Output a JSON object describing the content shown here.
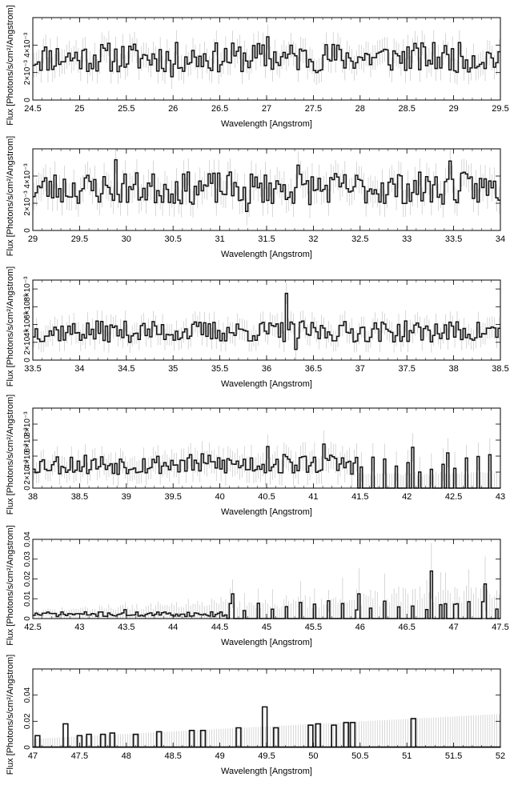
{
  "chart_data": [
    {
      "type": "line",
      "xlabel": "Wavelength [Angstrom]",
      "ylabel": "Flux [Photons/s/cm²/Angstrom]",
      "xlim": [
        24.5,
        29.5
      ],
      "ylim": [
        0,
        0.006
      ],
      "xticks": [
        {
          "v": 24.5,
          "label": "24.5"
        },
        {
          "v": 25,
          "label": "25"
        },
        {
          "v": 25.5,
          "label": "25.5"
        },
        {
          "v": 26,
          "label": "26"
        },
        {
          "v": 26.5,
          "label": "26.5"
        },
        {
          "v": 27,
          "label": "27"
        },
        {
          "v": 27.5,
          "label": "27.5"
        },
        {
          "v": 28,
          "label": "28"
        },
        {
          "v": 28.5,
          "label": "28.5"
        },
        {
          "v": 29,
          "label": "29"
        },
        {
          "v": 29.5,
          "label": "29.5"
        }
      ],
      "yticks": [
        {
          "v": 0,
          "label": "0"
        },
        {
          "v": 0.002,
          "label": "2×10⁻³"
        },
        {
          "v": 0.004,
          "label": "4×10⁻³"
        }
      ],
      "series": [
        {
          "x_start": 24.5,
          "x_step": 0.025,
          "level": 0.0031,
          "noise": 0.0011,
          "err": 0.0009,
          "err_growth": 0,
          "seed": 11,
          "spikes": [
            {
              "x": 27.0,
              "y": 0.0046
            },
            {
              "x": 25.98,
              "y": 0.0017
            }
          ]
        }
      ]
    },
    {
      "type": "line",
      "xlabel": "Wavelength [Angstrom]",
      "ylabel": "Flux [Photons/s/cm²/Angstrom]",
      "xlim": [
        29,
        34
      ],
      "ylim": [
        0,
        0.006
      ],
      "xticks": [
        {
          "v": 29,
          "label": "29"
        },
        {
          "v": 29.5,
          "label": "29.5"
        },
        {
          "v": 30,
          "label": "30"
        },
        {
          "v": 30.5,
          "label": "30.5"
        },
        {
          "v": 31,
          "label": "31"
        },
        {
          "v": 31.5,
          "label": "31.5"
        },
        {
          "v": 32,
          "label": "32"
        },
        {
          "v": 32.5,
          "label": "32.5"
        },
        {
          "v": 33,
          "label": "33"
        },
        {
          "v": 33.5,
          "label": "33.5"
        },
        {
          "v": 34,
          "label": "34"
        }
      ],
      "yticks": [
        {
          "v": 0,
          "label": "0"
        },
        {
          "v": 0.002,
          "label": "2×10⁻³"
        },
        {
          "v": 0.004,
          "label": "4×10⁻³"
        }
      ],
      "series": [
        {
          "x_start": 29.0,
          "x_step": 0.025,
          "level": 0.0031,
          "noise": 0.0012,
          "err": 0.001,
          "err_growth": 0,
          "seed": 23,
          "spikes": [
            {
              "x": 29.88,
              "y": 0.0052
            },
            {
              "x": 31.82,
              "y": 0.0048
            },
            {
              "x": 33.45,
              "y": 0.0051
            },
            {
              "x": 31.28,
              "y": 0.0014
            }
          ]
        }
      ]
    },
    {
      "type": "line",
      "xlabel": "Wavelength [Angstrom]",
      "ylabel": "Flux [Photons/s/cm²/Angstrom]",
      "xlim": [
        33.5,
        38.5
      ],
      "ylim": [
        0,
        0.009
      ],
      "xticks": [
        {
          "v": 33.5,
          "label": "33.5"
        },
        {
          "v": 34,
          "label": "34"
        },
        {
          "v": 34.5,
          "label": "34.5"
        },
        {
          "v": 35,
          "label": "35"
        },
        {
          "v": 35.5,
          "label": "35.5"
        },
        {
          "v": 36,
          "label": "36"
        },
        {
          "v": 36.5,
          "label": "36.5"
        },
        {
          "v": 37,
          "label": "37"
        },
        {
          "v": 37.5,
          "label": "37.5"
        },
        {
          "v": 38,
          "label": "38"
        },
        {
          "v": 38.5,
          "label": "38.5"
        }
      ],
      "yticks": [
        {
          "v": 0,
          "label": "0"
        },
        {
          "v": 0.002,
          "label": "2×10⁻³"
        },
        {
          "v": 0.004,
          "label": "4×10⁻³"
        },
        {
          "v": 0.006,
          "label": "6×10⁻³"
        },
        {
          "v": 0.008,
          "label": "8×10⁻³"
        }
      ],
      "series": [
        {
          "x_start": 33.5,
          "x_step": 0.025,
          "level": 0.0032,
          "noise": 0.0012,
          "err": 0.0012,
          "err_growth": 0,
          "seed": 37,
          "spikes": [
            {
              "x": 36.2,
              "y": 0.0075
            },
            {
              "x": 36.3,
              "y": 0.0012
            }
          ]
        }
      ]
    },
    {
      "type": "line",
      "xlabel": "Wavelength [Angstrom]",
      "ylabel": "Flux [Photons/s/cm²/Angstrom]",
      "xlim": [
        38,
        43
      ],
      "ylim": [
        0,
        0.01
      ],
      "xticks": [
        {
          "v": 38,
          "label": "38"
        },
        {
          "v": 38.5,
          "label": "38.5"
        },
        {
          "v": 39,
          "label": "39"
        },
        {
          "v": 39.5,
          "label": "39.5"
        },
        {
          "v": 40,
          "label": "40"
        },
        {
          "v": 40.5,
          "label": "40.5"
        },
        {
          "v": 41,
          "label": "41"
        },
        {
          "v": 41.5,
          "label": "41.5"
        },
        {
          "v": 42,
          "label": "42"
        },
        {
          "v": 42.5,
          "label": "42.5"
        },
        {
          "v": 43,
          "label": "43"
        }
      ],
      "yticks": [
        {
          "v": 0,
          "label": "0"
        },
        {
          "v": 0.002,
          "label": "2×10⁻³"
        },
        {
          "v": 0.004,
          "label": "4×10⁻³"
        },
        {
          "v": 0.006,
          "label": "6×10⁻³"
        },
        {
          "v": 0.008,
          "label": "8×10⁻³"
        }
      ],
      "series": [
        {
          "x_start": 38.0,
          "x_step": 0.025,
          "level": 0.003,
          "noise": 0.0013,
          "err": 0.0013,
          "err_growth": 0.0006,
          "seed": 53,
          "gap_from": 41.45,
          "gap_every": 5,
          "spikes": [
            {
              "x": 40.5,
              "y": 0.0052
            },
            {
              "x": 41.1,
              "y": 0.0055
            },
            {
              "x": 42.05,
              "y": 0.0051
            },
            {
              "x": 42.42,
              "y": 0.0044
            }
          ]
        }
      ]
    },
    {
      "type": "line",
      "xlabel": "Wavelength [Angstrom]",
      "ylabel": "Flux [Photons/s/cm²/Angstrom]",
      "xlim": [
        42.5,
        47.5
      ],
      "ylim": [
        0,
        0.04
      ],
      "xticks": [
        {
          "v": 42.5,
          "label": "42.5"
        },
        {
          "v": 43,
          "label": "43"
        },
        {
          "v": 43.5,
          "label": "43.5"
        },
        {
          "v": 44,
          "label": "44"
        },
        {
          "v": 44.5,
          "label": "44.5"
        },
        {
          "v": 45,
          "label": "45"
        },
        {
          "v": 45.5,
          "label": "45.5"
        },
        {
          "v": 46,
          "label": "46"
        },
        {
          "v": 46.5,
          "label": "46.5"
        },
        {
          "v": 47,
          "label": "47"
        },
        {
          "v": 47.5,
          "label": "47.5"
        }
      ],
      "yticks": [
        {
          "v": 0,
          "label": "0"
        },
        {
          "v": 0.01,
          "label": "0.01"
        },
        {
          "v": 0.02,
          "label": "0.02"
        },
        {
          "v": 0.03,
          "label": "0.03"
        },
        {
          "v": 0.04,
          "label": "0.04"
        }
      ],
      "series": [
        {
          "x_start": 42.5,
          "x_step": 0.025,
          "level": 0.0022,
          "noise": 0.0012,
          "err": 0.0015,
          "err_growth": 0.012,
          "seed": 71,
          "gap_from": 44.55,
          "gap_every": 6,
          "gap_level": 0.0065,
          "spikes": [
            {
              "x": 43.48,
              "y": 0.0045
            },
            {
              "x": 44.62,
              "y": 0.0125
            },
            {
              "x": 45.98,
              "y": 0.0125
            },
            {
              "x": 46.75,
              "y": 0.024
            },
            {
              "x": 47.33,
              "y": 0.0175
            },
            {
              "x": 47.03,
              "y": 0.0075
            },
            {
              "x": 46.9,
              "y": 0.0075
            }
          ]
        }
      ]
    },
    {
      "type": "line",
      "xlabel": "Wavelength [Angstrom]",
      "ylabel": "Flux [Photons/s/cm²/Angstrom]",
      "xlim": [
        47,
        52
      ],
      "ylim": [
        0,
        0.06
      ],
      "xticks": [
        {
          "v": 47,
          "label": "47"
        },
        {
          "v": 47.5,
          "label": "47.5"
        },
        {
          "v": 48,
          "label": "48"
        },
        {
          "v": 48.5,
          "label": "48.5"
        },
        {
          "v": 49,
          "label": "49"
        },
        {
          "v": 49.5,
          "label": "49.5"
        },
        {
          "v": 50,
          "label": "50"
        },
        {
          "v": 50.5,
          "label": "50.5"
        },
        {
          "v": 51,
          "label": "51"
        },
        {
          "v": 51.5,
          "label": "51.5"
        },
        {
          "v": 52,
          "label": "52"
        }
      ],
      "yticks": [
        {
          "v": 0,
          "label": "0"
        },
        {
          "v": 0.02,
          "label": "0.02"
        },
        {
          "v": 0.04,
          "label": "0.04"
        }
      ],
      "series": [
        {
          "x_start": 47.0,
          "x_step": 0.025,
          "level": 0.0,
          "noise": 0.0,
          "err": 0.011,
          "err_growth": 0.019,
          "seed": 89,
          "gap_from": 47.0,
          "gap_every": 1000,
          "sparse": [
            {
              "x": 47.05,
              "y": 0.009
            },
            {
              "x": 47.35,
              "y": 0.018
            },
            {
              "x": 47.5,
              "y": 0.009
            },
            {
              "x": 47.6,
              "y": 0.01
            },
            {
              "x": 47.75,
              "y": 0.01
            },
            {
              "x": 47.85,
              "y": 0.011
            },
            {
              "x": 48.1,
              "y": 0.01
            },
            {
              "x": 48.35,
              "y": 0.012
            },
            {
              "x": 48.7,
              "y": 0.013
            },
            {
              "x": 48.82,
              "y": 0.013
            },
            {
              "x": 49.2,
              "y": 0.015
            },
            {
              "x": 49.48,
              "y": 0.031
            },
            {
              "x": 49.6,
              "y": 0.015
            },
            {
              "x": 49.97,
              "y": 0.017
            },
            {
              "x": 50.05,
              "y": 0.018
            },
            {
              "x": 50.22,
              "y": 0.017
            },
            {
              "x": 50.35,
              "y": 0.019
            },
            {
              "x": 50.42,
              "y": 0.019
            },
            {
              "x": 51.07,
              "y": 0.022
            }
          ]
        }
      ]
    }
  ]
}
